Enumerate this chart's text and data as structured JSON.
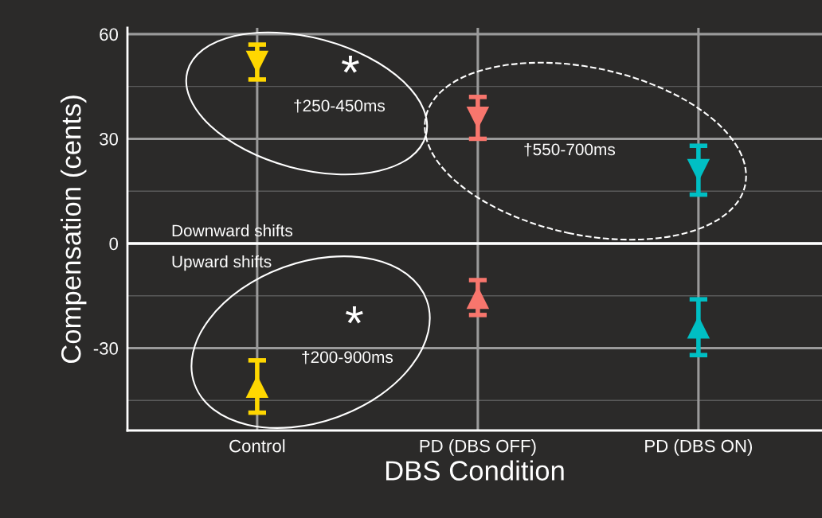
{
  "chart_data": {
    "type": "scatter",
    "xlabel": "DBS Condition",
    "ylabel": "Compensation (cents)",
    "categories": [
      "Control",
      "PD (DBS OFF)",
      "PD (DBS ON)"
    ],
    "series": [
      {
        "marker": "triangle",
        "colors": [
          "#ffd700",
          "#f8766d",
          "#00bfc4"
        ],
        "values": [
          52,
          36,
          21
        ],
        "errors": [
          5,
          6,
          7
        ]
      },
      {
        "marker": "triangle",
        "colors": [
          "#ffd700",
          "#f8766d",
          "#00bfc4"
        ],
        "values": [
          -41,
          -15.5,
          -24
        ],
        "errors": [
          7.5,
          5,
          8
        ]
      }
    ],
    "ylim": [
      -53.6,
      61.8
    ],
    "yticks": [
      {
        "value": -45,
        "label": null
      },
      -30,
      {
        "value": -15,
        "label": null
      },
      0,
      {
        "value": 15,
        "label": null
      },
      30,
      {
        "value": 45,
        "label": null
      },
      60
    ],
    "grid": true,
    "ref_lines": [
      {
        "axis": "y",
        "value": 0,
        "color": "#ffffff"
      }
    ],
    "annotations": [
      "*",
      "†250-450ms",
      "†550-700ms",
      "*",
      "†200-900ms",
      "Downward shifts",
      "Upward shifts"
    ]
  }
}
